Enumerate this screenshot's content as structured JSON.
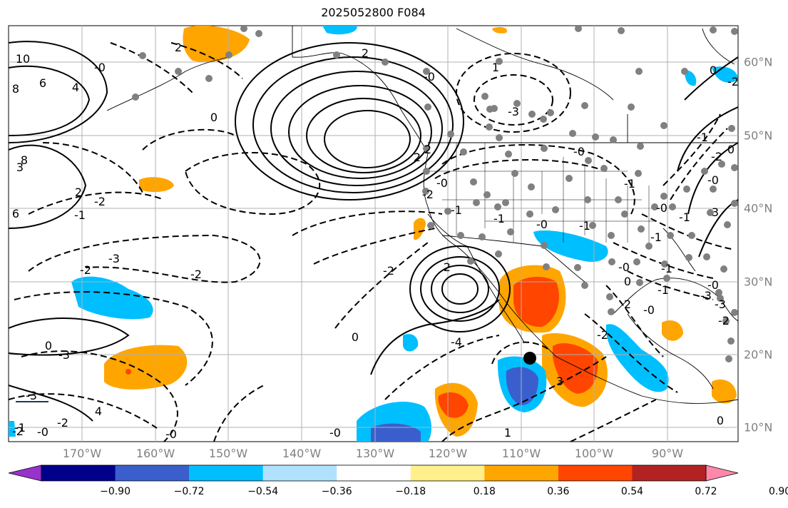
{
  "title": "2025052800 F084",
  "map": {
    "projection": "cylindrical",
    "lon_labels": [
      "170°W",
      "160°W",
      "150°W",
      "140°W",
      "130°W",
      "120°W",
      "110°W",
      "100°W",
      "90°W"
    ],
    "lat_labels": [
      "60°N",
      "50°N",
      "40°N",
      "30°N",
      "20°N",
      "10°N"
    ],
    "contour_labels": [
      "0",
      "2",
      "2",
      "-0",
      "6",
      "4",
      "10",
      "8",
      "3",
      "8",
      "-0",
      "6",
      "-3",
      "-2",
      "-2",
      "-2",
      "2",
      "2",
      "-2",
      "-1",
      "-0",
      "-1",
      "-0",
      "-1",
      "2",
      "-0",
      "-2",
      "3",
      "-1",
      "0",
      "-0",
      "-1",
      "-0",
      "-0",
      "-0",
      "1",
      "3",
      "-4",
      "0",
      "-3",
      "0",
      "4",
      "-2",
      "-3",
      "-2",
      "-3",
      "1",
      "2",
      "2",
      "-0",
      "-2",
      "-1",
      "-1",
      "-0",
      "-1",
      "-1",
      "-0",
      "0",
      "-1",
      "-3",
      "-3",
      "-2",
      "0",
      "-2",
      "-2",
      "-1",
      "-0",
      "0"
    ],
    "gridlines": true,
    "coastlines": true,
    "station_marker_color": "#808080"
  },
  "colorbar": {
    "ticks": [
      "−0.90",
      "−0.72",
      "−0.54",
      "−0.36",
      "−0.18",
      "0.18",
      "0.36",
      "0.54",
      "0.72",
      "0.90"
    ],
    "colors": [
      "#9932cc",
      "#00008b",
      "#3a5fcd",
      "#00bfff",
      "#b0e2ff",
      "#ffffff",
      "#fff08c",
      "#ffa500",
      "#ff4500",
      "#b22222",
      "#ff88aa"
    ]
  }
}
